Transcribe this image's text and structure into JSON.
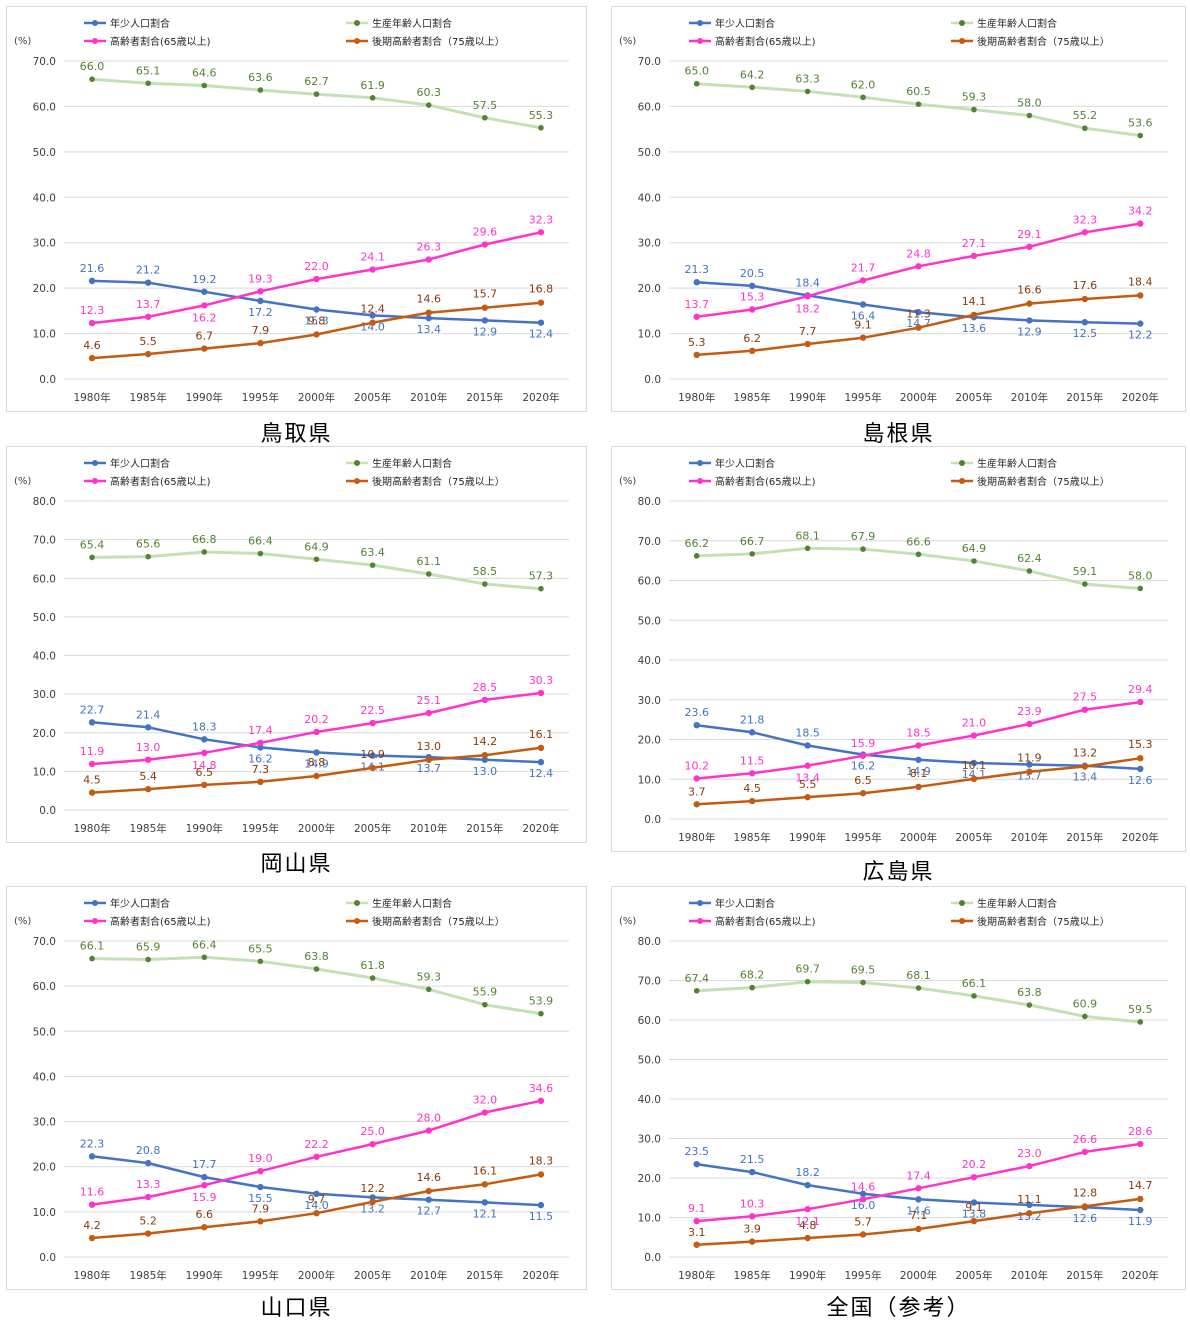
{
  "x_categories": [
    "1980年",
    "1985年",
    "1990年",
    "1995年",
    "2000年",
    "2005年",
    "2010年",
    "2015年",
    "2020年"
  ],
  "y_unit": "(%)",
  "legend": {
    "youth": "年少人口割合",
    "working": "生産年齢人口割合",
    "elderly": "高齢者割合(65歳以上)",
    "late_elderly": "後期高齢者割合（75歳以上）"
  },
  "colors": {
    "youth": "#4472c4",
    "working": "#c5e0b4",
    "working_marker": "#548235",
    "working_label": "#548235",
    "elderly": "#ff33cc",
    "late_elderly": "#c55a11",
    "late_label": "#843c0c"
  },
  "chart_data": [
    {
      "type": "line",
      "caption": "鳥取県",
      "ylim": [
        0,
        70
      ],
      "yticks": [
        0,
        10,
        20,
        30,
        40,
        50,
        60,
        70
      ],
      "categories": [
        "1980年",
        "1985年",
        "1990年",
        "1995年",
        "2000年",
        "2005年",
        "2010年",
        "2015年",
        "2020年"
      ],
      "series": [
        {
          "name": "年少人口割合",
          "key": "youth",
          "values": [
            21.6,
            21.2,
            19.2,
            17.2,
            15.3,
            14.0,
            13.4,
            12.9,
            12.4
          ]
        },
        {
          "name": "生産年齢人口割合",
          "key": "working",
          "values": [
            66.0,
            65.1,
            64.6,
            63.6,
            62.7,
            61.9,
            60.3,
            57.5,
            55.3
          ]
        },
        {
          "name": "高齢者割合(65歳以上)",
          "key": "elderly",
          "values": [
            12.3,
            13.7,
            16.2,
            19.3,
            22.0,
            24.1,
            26.3,
            29.6,
            32.3
          ]
        },
        {
          "name": "後期高齢者割合（75歳以上）",
          "key": "late_elderly",
          "values": [
            4.6,
            5.5,
            6.7,
            7.9,
            9.8,
            12.4,
            14.6,
            15.7,
            16.8
          ]
        }
      ]
    },
    {
      "type": "line",
      "caption": "島根県",
      "ylim": [
        0,
        70
      ],
      "yticks": [
        0,
        10,
        20,
        30,
        40,
        50,
        60,
        70
      ],
      "categories": [
        "1980年",
        "1985年",
        "1990年",
        "1995年",
        "2000年",
        "2005年",
        "2010年",
        "2015年",
        "2020年"
      ],
      "series": [
        {
          "name": "年少人口割合",
          "key": "youth",
          "values": [
            21.3,
            20.5,
            18.4,
            16.4,
            14.7,
            13.6,
            12.9,
            12.5,
            12.2
          ]
        },
        {
          "name": "生産年齢人口割合",
          "key": "working",
          "values": [
            65.0,
            64.2,
            63.3,
            62.0,
            60.5,
            59.3,
            58.0,
            55.2,
            53.6
          ]
        },
        {
          "name": "高齢者割合(65歳以上)",
          "key": "elderly",
          "values": [
            13.7,
            15.3,
            18.2,
            21.7,
            24.8,
            27.1,
            29.1,
            32.3,
            34.2
          ]
        },
        {
          "name": "後期高齢者割合（75歳以上）",
          "key": "late_elderly",
          "values": [
            5.3,
            6.2,
            7.7,
            9.1,
            11.3,
            14.1,
            16.6,
            17.6,
            18.4
          ]
        }
      ]
    },
    {
      "type": "line",
      "caption": "岡山県",
      "ylim": [
        0,
        80
      ],
      "yticks": [
        0,
        10,
        20,
        30,
        40,
        50,
        60,
        70,
        80
      ],
      "categories": [
        "1980年",
        "1985年",
        "1990年",
        "1995年",
        "2000年",
        "2005年",
        "2010年",
        "2015年",
        "2020年"
      ],
      "series": [
        {
          "name": "年少人口割合",
          "key": "youth",
          "values": [
            22.7,
            21.4,
            18.3,
            16.2,
            14.9,
            14.1,
            13.7,
            13.0,
            12.4
          ]
        },
        {
          "name": "生産年齢人口割合",
          "key": "working",
          "values": [
            65.4,
            65.6,
            66.8,
            66.4,
            64.9,
            63.4,
            61.1,
            58.5,
            57.3
          ]
        },
        {
          "name": "高齢者割合(65歳以上)",
          "key": "elderly",
          "values": [
            11.9,
            13.0,
            14.8,
            17.4,
            20.2,
            22.5,
            25.1,
            28.5,
            30.3
          ]
        },
        {
          "name": "後期高齢者割合（75歳以上）",
          "key": "late_elderly",
          "values": [
            4.5,
            5.4,
            6.5,
            7.3,
            8.8,
            10.9,
            13.0,
            14.2,
            16.1
          ]
        }
      ]
    },
    {
      "type": "line",
      "caption": "広島県",
      "ylim": [
        0,
        80
      ],
      "yticks": [
        0,
        10,
        20,
        30,
        40,
        50,
        60,
        70,
        80
      ],
      "categories": [
        "1980年",
        "1985年",
        "1990年",
        "1995年",
        "2000年",
        "2005年",
        "2010年",
        "2015年",
        "2020年"
      ],
      "series": [
        {
          "name": "年少人口割合",
          "key": "youth",
          "values": [
            23.6,
            21.8,
            18.5,
            16.2,
            14.9,
            14.1,
            13.7,
            13.4,
            12.6
          ]
        },
        {
          "name": "生産年齢人口割合",
          "key": "working",
          "values": [
            66.2,
            66.7,
            68.1,
            67.9,
            66.6,
            64.9,
            62.4,
            59.1,
            58.0
          ]
        },
        {
          "name": "高齢者割合(65歳以上)",
          "key": "elderly",
          "values": [
            10.2,
            11.5,
            13.4,
            15.9,
            18.5,
            21.0,
            23.9,
            27.5,
            29.4
          ]
        },
        {
          "name": "後期高齢者割合（75歳以上）",
          "key": "late_elderly",
          "values": [
            3.7,
            4.5,
            5.5,
            6.5,
            8.1,
            10.1,
            11.9,
            13.2,
            15.3
          ]
        }
      ]
    },
    {
      "type": "line",
      "caption": "山口県",
      "ylim": [
        0,
        70
      ],
      "yticks": [
        0,
        10,
        20,
        30,
        40,
        50,
        60,
        70
      ],
      "categories": [
        "1980年",
        "1985年",
        "1990年",
        "1995年",
        "2000年",
        "2005年",
        "2010年",
        "2015年",
        "2020年"
      ],
      "series": [
        {
          "name": "年少人口割合",
          "key": "youth",
          "values": [
            22.3,
            20.8,
            17.7,
            15.5,
            14.0,
            13.2,
            12.7,
            12.1,
            11.5
          ]
        },
        {
          "name": "生産年齢人口割合",
          "key": "working",
          "values": [
            66.1,
            65.9,
            66.4,
            65.5,
            63.8,
            61.8,
            59.3,
            55.9,
            53.9
          ]
        },
        {
          "name": "高齢者割合(65歳以上)",
          "key": "elderly",
          "values": [
            11.6,
            13.3,
            15.9,
            19.0,
            22.2,
            25.0,
            28.0,
            32.0,
            34.6
          ]
        },
        {
          "name": "後期高齢者割合（75歳以上）",
          "key": "late_elderly",
          "values": [
            4.2,
            5.2,
            6.6,
            7.9,
            9.7,
            12.2,
            14.6,
            16.1,
            18.3
          ]
        }
      ]
    },
    {
      "type": "line",
      "caption": "全国（参考）",
      "ylim": [
        0,
        80
      ],
      "yticks": [
        0,
        10,
        20,
        30,
        40,
        50,
        60,
        70,
        80
      ],
      "categories": [
        "1980年",
        "1985年",
        "1990年",
        "1995年",
        "2000年",
        "2005年",
        "2010年",
        "2015年",
        "2020年"
      ],
      "series": [
        {
          "name": "年少人口割合",
          "key": "youth",
          "values": [
            23.5,
            21.5,
            18.2,
            16.0,
            14.6,
            13.8,
            13.2,
            12.6,
            11.9
          ]
        },
        {
          "name": "生産年齢人口割合",
          "key": "working",
          "values": [
            67.4,
            68.2,
            69.7,
            69.5,
            68.1,
            66.1,
            63.8,
            60.9,
            59.5
          ]
        },
        {
          "name": "高齢者割合(65歳以上)",
          "key": "elderly",
          "values": [
            9.1,
            10.3,
            12.1,
            14.6,
            17.4,
            20.2,
            23.0,
            26.6,
            28.6
          ]
        },
        {
          "name": "後期高齢者割合（75歳以上）",
          "key": "late_elderly",
          "values": [
            3.1,
            3.9,
            4.8,
            5.7,
            7.1,
            9.1,
            11.1,
            12.8,
            14.7
          ]
        }
      ]
    }
  ]
}
